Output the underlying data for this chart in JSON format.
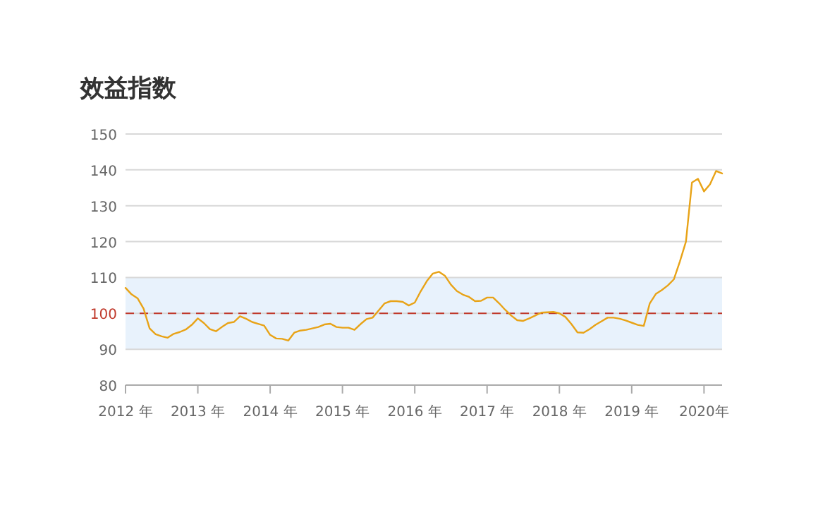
{
  "chart_data": {
    "type": "line",
    "title": "效益指数",
    "x": [
      "2012-01",
      "2012-02",
      "2012-03",
      "2012-04",
      "2012-05",
      "2012-06",
      "2012-07",
      "2012-08",
      "2012-09",
      "2012-10",
      "2012-11",
      "2012-12",
      "2013-01",
      "2013-02",
      "2013-03",
      "2013-04",
      "2013-05",
      "2013-06",
      "2013-07",
      "2013-08",
      "2013-09",
      "2013-10",
      "2013-11",
      "2013-12",
      "2014-01",
      "2014-02",
      "2014-03",
      "2014-04",
      "2014-05",
      "2014-06",
      "2014-07",
      "2014-08",
      "2014-09",
      "2014-10",
      "2014-11",
      "2014-12",
      "2015-01",
      "2015-02",
      "2015-03",
      "2015-04",
      "2015-05",
      "2015-06",
      "2015-07",
      "2015-08",
      "2015-09",
      "2015-10",
      "2015-11",
      "2015-12",
      "2016-01",
      "2016-02",
      "2016-03",
      "2016-04",
      "2016-05",
      "2016-06",
      "2016-07",
      "2016-08",
      "2016-09",
      "2016-10",
      "2016-11",
      "2016-12",
      "2017-01",
      "2017-02",
      "2017-03",
      "2017-04",
      "2017-05",
      "2017-06",
      "2017-07",
      "2017-08",
      "2017-09",
      "2017-10",
      "2017-11",
      "2017-12",
      "2018-01",
      "2018-02",
      "2018-03",
      "2018-04",
      "2018-05",
      "2018-06",
      "2018-07",
      "2018-08",
      "2018-09",
      "2018-10",
      "2018-11",
      "2018-12",
      "2019-01",
      "2019-02",
      "2019-03",
      "2019-04",
      "2019-05",
      "2019-06",
      "2019-07",
      "2019-08",
      "2019-09",
      "2019-10",
      "2019-11",
      "2019-12",
      "2020-01",
      "2020-02",
      "2020-03",
      "2020-04"
    ],
    "series": [
      {
        "color": "#e8a317",
        "values": [
          107.1,
          105.3,
          104.2,
          101.3,
          95.8,
          94.2,
          93.6,
          93.2,
          94.3,
          94.8,
          95.5,
          96.8,
          98.6,
          97.3,
          95.6,
          95.0,
          96.2,
          97.3,
          97.6,
          99.2,
          98.5,
          97.6,
          97.1,
          96.6,
          94.0,
          93.0,
          92.9,
          92.4,
          94.6,
          95.2,
          95.4,
          95.8,
          96.2,
          96.9,
          97.1,
          96.2,
          96.0,
          96.0,
          95.4,
          97.0,
          98.4,
          98.8,
          100.8,
          102.8,
          103.4,
          103.4,
          103.2,
          102.2,
          103.0,
          106.2,
          109.0,
          111.1,
          111.6,
          110.5,
          108.0,
          106.2,
          105.2,
          104.6,
          103.4,
          103.5,
          104.4,
          104.4,
          102.8,
          101.0,
          99.4,
          98.1,
          97.9,
          98.6,
          99.4,
          100.2,
          100.3,
          100.4,
          100.0,
          99.0,
          97.0,
          94.7,
          94.6,
          95.6,
          96.8,
          97.8,
          98.8,
          98.8,
          98.5,
          98.0,
          97.4,
          96.8,
          96.5,
          102.8,
          105.4,
          106.5,
          107.8,
          109.5,
          114.5,
          120.0,
          136.5,
          137.5,
          134.0,
          136.0,
          139.7,
          139.0
        ]
      }
    ],
    "xlim": [
      "2012-01",
      "2020-04"
    ],
    "xticks": [
      {
        "value": "2012-01",
        "label": "2012 年"
      },
      {
        "value": "2013-01",
        "label": "2013 年"
      },
      {
        "value": "2014-01",
        "label": "2014 年"
      },
      {
        "value": "2015-01",
        "label": "2015 年"
      },
      {
        "value": "2016-01",
        "label": "2016 年"
      },
      {
        "value": "2017-01",
        "label": "2017 年"
      },
      {
        "value": "2018-01",
        "label": "2018 年"
      },
      {
        "value": "2019-01",
        "label": "2019 年"
      },
      {
        "value": "2020-01",
        "label": "2020年"
      }
    ],
    "ylim": [
      80,
      150
    ],
    "yticks": [
      80,
      90,
      100,
      110,
      120,
      130,
      140,
      150
    ],
    "grid": "y",
    "marker": "none",
    "line_style": "solid",
    "ref_lines": [
      {
        "axis": "y",
        "value": 100,
        "color": "#c0392b",
        "line_style": "dashed"
      }
    ],
    "bands": [
      {
        "axis": "y",
        "from": 90,
        "to": 110,
        "color": "#e8f2fc"
      }
    ]
  }
}
